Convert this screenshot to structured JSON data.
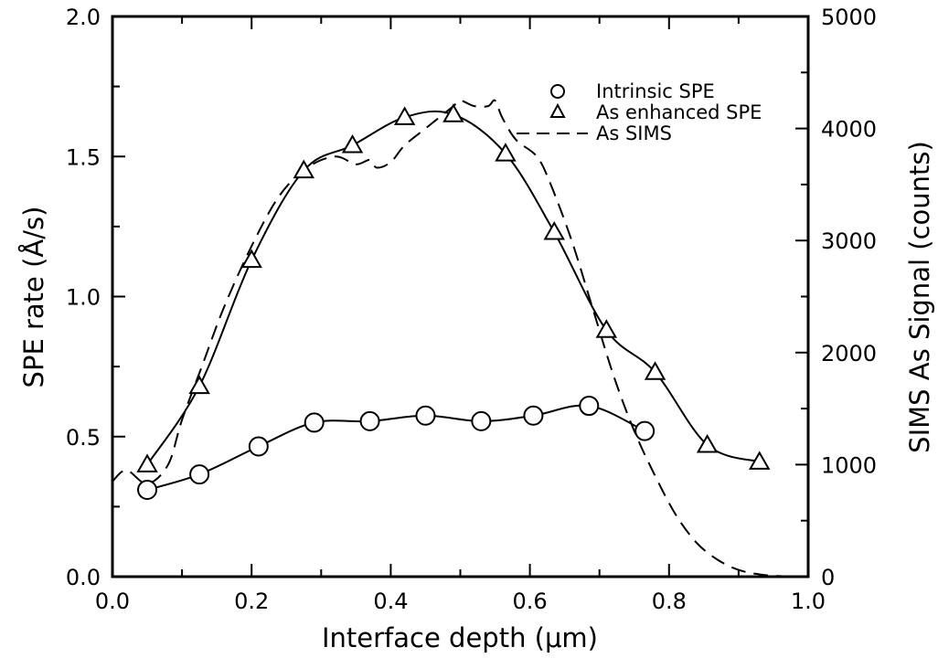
{
  "chart_data": {
    "type": "line",
    "title": "",
    "xlabel": "Interface depth (μm)",
    "ylabel": "SPE rate (Å/s)",
    "y2label": "SIMS As Signal (counts)",
    "xlim": [
      0.0,
      1.0
    ],
    "ylim": [
      0.0,
      2.0
    ],
    "y2lim": [
      0,
      5000
    ],
    "xticks": [
      "0.0",
      "0.2",
      "0.4",
      "0.6",
      "0.8",
      "1.0"
    ],
    "yticks": [
      "0.0",
      "0.5",
      "1.0",
      "1.5",
      "2.0"
    ],
    "y2ticks": [
      "0",
      "1000",
      "2000",
      "3000",
      "4000",
      "5000"
    ],
    "grid": false,
    "legend_position": "top-right",
    "series": [
      {
        "name": "Intrinsic SPE",
        "axis": "left",
        "marker": "circle",
        "line": "solid",
        "points": [
          [
            0.05,
            0.31
          ],
          [
            0.125,
            0.365
          ],
          [
            0.21,
            0.465
          ],
          [
            0.29,
            0.55
          ],
          [
            0.37,
            0.555
          ],
          [
            0.45,
            0.575
          ],
          [
            0.53,
            0.555
          ],
          [
            0.605,
            0.575
          ],
          [
            0.685,
            0.61
          ],
          [
            0.765,
            0.52
          ]
        ]
      },
      {
        "name": "As enhanced SPE",
        "axis": "left",
        "marker": "triangle",
        "line": "solid",
        "points": [
          [
            0.05,
            0.4
          ],
          [
            0.125,
            0.68
          ],
          [
            0.2,
            1.13
          ],
          [
            0.275,
            1.45
          ],
          [
            0.345,
            1.54
          ],
          [
            0.42,
            1.64
          ],
          [
            0.49,
            1.65
          ],
          [
            0.565,
            1.51
          ],
          [
            0.635,
            1.23
          ],
          [
            0.71,
            0.88
          ],
          [
            0.78,
            0.73
          ],
          [
            0.855,
            0.47
          ],
          [
            0.93,
            0.41
          ]
        ]
      },
      {
        "name": "As SIMS",
        "axis": "right",
        "marker": "none",
        "line": "dashed",
        "points": [
          [
            0.0,
            850
          ],
          [
            0.02,
            950
          ],
          [
            0.05,
            830
          ],
          [
            0.08,
            1000
          ],
          [
            0.1,
            1400
          ],
          [
            0.13,
            1900
          ],
          [
            0.16,
            2400
          ],
          [
            0.2,
            2950
          ],
          [
            0.24,
            3400
          ],
          [
            0.28,
            3650
          ],
          [
            0.32,
            3750
          ],
          [
            0.35,
            3680
          ],
          [
            0.37,
            3720
          ],
          [
            0.38,
            3650
          ],
          [
            0.4,
            3700
          ],
          [
            0.42,
            3850
          ],
          [
            0.45,
            4000
          ],
          [
            0.47,
            4100
          ],
          [
            0.49,
            4200
          ],
          [
            0.5,
            4250
          ],
          [
            0.52,
            4200
          ],
          [
            0.54,
            4200
          ],
          [
            0.55,
            4250
          ],
          [
            0.56,
            4100
          ],
          [
            0.58,
            3900
          ],
          [
            0.61,
            3750
          ],
          [
            0.63,
            3500
          ],
          [
            0.66,
            3000
          ],
          [
            0.69,
            2400
          ],
          [
            0.72,
            1800
          ],
          [
            0.75,
            1300
          ],
          [
            0.78,
            900
          ],
          [
            0.81,
            550
          ],
          [
            0.84,
            300
          ],
          [
            0.87,
            150
          ],
          [
            0.9,
            60
          ],
          [
            0.93,
            20
          ],
          [
            0.96,
            5
          ],
          [
            0.98,
            0
          ],
          [
            1.0,
            0
          ]
        ]
      }
    ],
    "annotations": []
  }
}
